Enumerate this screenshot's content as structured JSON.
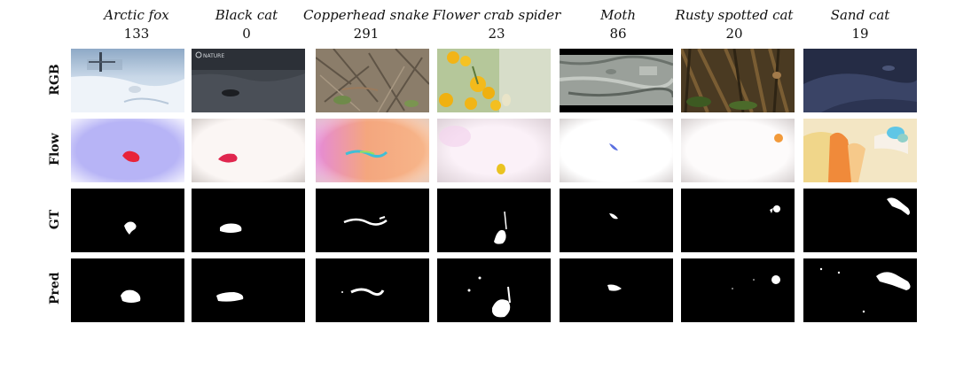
{
  "rows": [
    {
      "label": "RGB"
    },
    {
      "label": "Flow"
    },
    {
      "label": "GT"
    },
    {
      "label": "Pred"
    }
  ],
  "columns": [
    {
      "name": "Arctic fox",
      "count": "133",
      "rgb_watermark": ""
    },
    {
      "name": "Black cat",
      "count": "0",
      "rgb_watermark": "NATURE"
    },
    {
      "name": "Copperhead snake",
      "count": "291",
      "rgb_watermark": ""
    },
    {
      "name": "Flower crab spider",
      "count": "23",
      "rgb_watermark": ""
    },
    {
      "name": "Moth",
      "count": "86",
      "rgb_watermark": ""
    },
    {
      "name": "Rusty spotted cat",
      "count": "20",
      "rgb_watermark": ""
    },
    {
      "name": "Sand cat",
      "count": "19",
      "rgb_watermark": ""
    }
  ]
}
